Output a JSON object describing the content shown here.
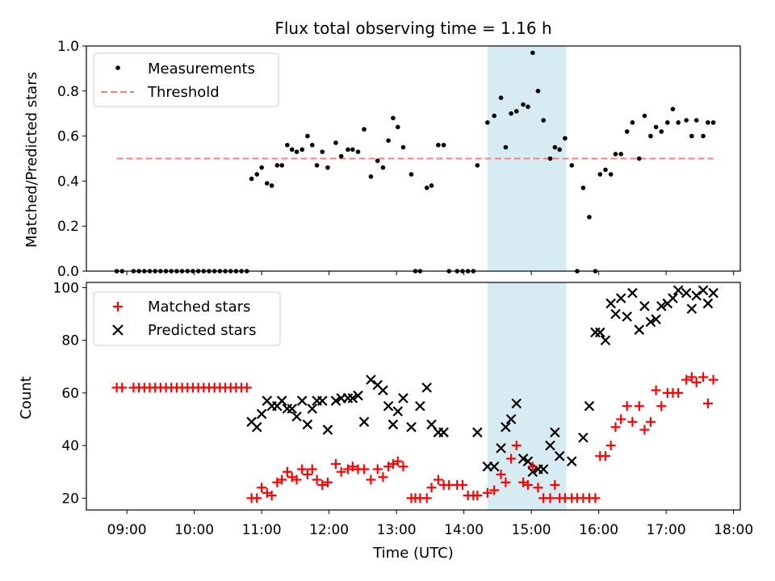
{
  "chart_data": {
    "title": "Flux total observing time = 1.16 h",
    "xlabel": "Time (UTC)",
    "xlim": [
      8.4,
      18.1
    ],
    "xticks": [
      {
        "v": 9,
        "label": "09:00"
      },
      {
        "v": 10,
        "label": "10:00"
      },
      {
        "v": 11,
        "label": "11:00"
      },
      {
        "v": 12,
        "label": "12:00"
      },
      {
        "v": 13,
        "label": "13:00"
      },
      {
        "v": 14,
        "label": "14:00"
      },
      {
        "v": 15,
        "label": "15:00"
      },
      {
        "v": 16,
        "label": "16:00"
      },
      {
        "v": 17,
        "label": "17:00"
      },
      {
        "v": 18,
        "label": "18:00"
      }
    ],
    "highlight_span": [
      14.35,
      15.52
    ],
    "colors": {
      "highlight": "#add8e6",
      "threshold": "#ff7f7f",
      "matched": "#ff0000",
      "predicted": "#000000",
      "measurement": "#000000"
    },
    "top": {
      "type": "scatter",
      "ylabel": "Matched/Predicted stars",
      "ylim": [
        0,
        1.0
      ],
      "yticks": [
        "0.0",
        "0.2",
        "0.4",
        "0.6",
        "0.8",
        "1.0"
      ],
      "legend": {
        "position": "top-left",
        "entries": [
          {
            "label": "Measurements"
          },
          {
            "label": "Threshold"
          }
        ]
      },
      "threshold": {
        "value": 0.5,
        "x_range": [
          8.85,
          17.7
        ]
      },
      "x": [
        8.85,
        8.93,
        9.1,
        9.18,
        9.26,
        9.34,
        9.42,
        9.5,
        9.58,
        9.66,
        9.74,
        9.82,
        9.9,
        9.98,
        10.06,
        10.14,
        10.22,
        10.3,
        10.38,
        10.46,
        10.54,
        10.62,
        10.7,
        10.78,
        10.85,
        10.93,
        11.0,
        11.08,
        11.15,
        11.23,
        11.3,
        11.38,
        11.45,
        11.52,
        11.6,
        11.68,
        11.75,
        11.82,
        11.9,
        11.98,
        12.1,
        12.18,
        12.28,
        12.35,
        12.43,
        12.52,
        12.62,
        12.72,
        12.8,
        12.88,
        12.95,
        13.02,
        13.1,
        13.22,
        13.28,
        13.35,
        13.45,
        13.52,
        13.62,
        13.7,
        13.78,
        13.9,
        13.98,
        14.06,
        14.14,
        14.2,
        14.35,
        14.45,
        14.55,
        14.62,
        14.7,
        14.78,
        14.88,
        14.95,
        15.02,
        15.1,
        15.18,
        15.28,
        15.35,
        15.42,
        15.5,
        15.6,
        15.68,
        15.77,
        15.86,
        15.95,
        16.02,
        16.1,
        16.18,
        16.25,
        16.33,
        16.42,
        16.5,
        16.6,
        16.68,
        16.77,
        16.85,
        16.93,
        17.02,
        17.1,
        17.18,
        17.3,
        17.38,
        17.45,
        17.55,
        17.62,
        17.7
      ],
      "y": [
        0,
        0,
        0,
        0,
        0,
        0,
        0,
        0,
        0,
        0,
        0,
        0,
        0,
        0,
        0,
        0,
        0,
        0,
        0,
        0,
        0,
        0,
        0,
        0,
        0.41,
        0.43,
        0.46,
        0.39,
        0.38,
        0.47,
        0.47,
        0.56,
        0.54,
        0.53,
        0.54,
        0.6,
        0.56,
        0.47,
        0.53,
        0.46,
        0.57,
        0.51,
        0.54,
        0.54,
        0.53,
        0.63,
        0.42,
        0.49,
        0.46,
        0.58,
        0.68,
        0.64,
        0.55,
        0.43,
        0,
        0,
        0.37,
        0.38,
        0.56,
        0.56,
        0,
        0,
        0,
        0,
        0,
        0.47,
        0.66,
        0.69,
        0.77,
        0.55,
        0.7,
        0.71,
        0.74,
        0.73,
        0.97,
        0.8,
        0.67,
        0.5,
        0.55,
        0.54,
        0.59,
        0.47,
        0,
        0.37,
        0.24,
        0,
        0.43,
        0.45,
        0.43,
        0.52,
        0.52,
        0.62,
        0.66,
        0.5,
        0.69,
        0.6,
        0.64,
        0.62,
        0.66,
        0.72,
        0.66,
        0.67,
        0.6,
        0.67,
        0.6,
        0.66,
        0.66
      ]
    },
    "bottom": {
      "type": "scatter",
      "ylabel": "Count",
      "ylim": [
        15.5,
        102
      ],
      "yticks": [
        "20",
        "40",
        "60",
        "80",
        "100"
      ],
      "legend": {
        "position": "top-left",
        "entries": [
          {
            "label": "Matched stars"
          },
          {
            "label": "Predicted stars"
          }
        ]
      },
      "matched": {
        "x": [
          8.85,
          8.93,
          9.1,
          9.18,
          9.26,
          9.34,
          9.42,
          9.5,
          9.58,
          9.66,
          9.74,
          9.82,
          9.9,
          9.98,
          10.06,
          10.14,
          10.22,
          10.3,
          10.38,
          10.46,
          10.54,
          10.62,
          10.7,
          10.78,
          10.85,
          10.93,
          11.0,
          11.08,
          11.15,
          11.23,
          11.3,
          11.38,
          11.45,
          11.52,
          11.6,
          11.68,
          11.75,
          11.82,
          11.9,
          11.98,
          12.1,
          12.18,
          12.28,
          12.35,
          12.43,
          12.52,
          12.62,
          12.72,
          12.8,
          12.88,
          12.95,
          13.02,
          13.1,
          13.22,
          13.28,
          13.35,
          13.45,
          13.52,
          13.62,
          13.7,
          13.78,
          13.9,
          13.98,
          14.06,
          14.14,
          14.2,
          14.35,
          14.45,
          14.55,
          14.62,
          14.7,
          14.78,
          14.88,
          14.95,
          15.02,
          15.1,
          15.18,
          15.28,
          15.35,
          15.42,
          15.5,
          15.6,
          15.68,
          15.77,
          15.86,
          15.95,
          16.02,
          16.1,
          16.18,
          16.25,
          16.33,
          16.42,
          16.5,
          16.6,
          16.68,
          16.77,
          16.85,
          16.93,
          17.02,
          17.1,
          17.18,
          17.3,
          17.38,
          17.45,
          17.55,
          17.62,
          17.7
        ],
        "y": [
          62,
          62,
          62,
          62,
          62,
          62,
          62,
          62,
          62,
          62,
          62,
          62,
          62,
          62,
          62,
          62,
          62,
          62,
          62,
          62,
          62,
          62,
          62,
          62,
          20,
          20,
          24,
          22,
          21,
          26,
          27,
          30,
          28,
          27,
          31,
          29,
          31,
          27,
          25,
          26,
          33,
          30,
          31,
          32,
          31,
          31,
          27,
          31,
          28,
          32,
          33,
          34,
          32,
          20,
          20,
          20,
          20,
          24,
          27,
          25,
          25,
          25,
          25,
          21,
          21,
          21,
          22,
          23,
          29,
          26,
          35,
          40,
          26,
          25,
          32,
          24,
          20,
          20,
          25,
          20,
          20,
          20,
          20,
          20,
          20,
          20,
          36,
          36,
          40,
          47,
          50,
          55,
          49,
          55,
          46,
          49,
          61,
          55,
          60,
          60,
          60,
          65,
          66,
          64,
          66,
          56,
          65
        ]
      },
      "predicted": {
        "x": [
          10.85,
          10.93,
          11.0,
          11.08,
          11.15,
          11.23,
          11.3,
          11.38,
          11.45,
          11.52,
          11.6,
          11.68,
          11.75,
          11.82,
          11.9,
          11.98,
          12.1,
          12.18,
          12.28,
          12.35,
          12.43,
          12.52,
          12.62,
          12.72,
          12.8,
          12.88,
          12.95,
          13.02,
          13.1,
          13.22,
          13.35,
          13.45,
          13.52,
          13.62,
          13.7,
          14.2,
          14.35,
          14.45,
          14.55,
          14.62,
          14.7,
          14.78,
          14.88,
          14.95,
          15.02,
          15.1,
          15.18,
          15.28,
          15.35,
          15.42,
          15.6,
          15.77,
          15.86,
          15.95,
          16.02,
          16.1,
          16.18,
          16.25,
          16.33,
          16.42,
          16.5,
          16.6,
          16.68,
          16.77,
          16.85,
          16.93,
          17.02,
          17.1,
          17.18,
          17.3,
          17.38,
          17.45,
          17.55,
          17.62,
          17.7
        ],
        "y": [
          49,
          47,
          52,
          57,
          55,
          55,
          57,
          54,
          54,
          51,
          57,
          48,
          54,
          57,
          57,
          46,
          57,
          58,
          58,
          58,
          59,
          49,
          65,
          63,
          61,
          55,
          48,
          53,
          58,
          47,
          55,
          62,
          48,
          45,
          45,
          45,
          32,
          32,
          39,
          47,
          50,
          56,
          35,
          34,
          30,
          31,
          31,
          40,
          45,
          36,
          34,
          43,
          55,
          83,
          83,
          80,
          94,
          90,
          96,
          89,
          98,
          84,
          93,
          87,
          88,
          93,
          94,
          96,
          99,
          98,
          92,
          97,
          99,
          94,
          98
        ]
      }
    }
  }
}
